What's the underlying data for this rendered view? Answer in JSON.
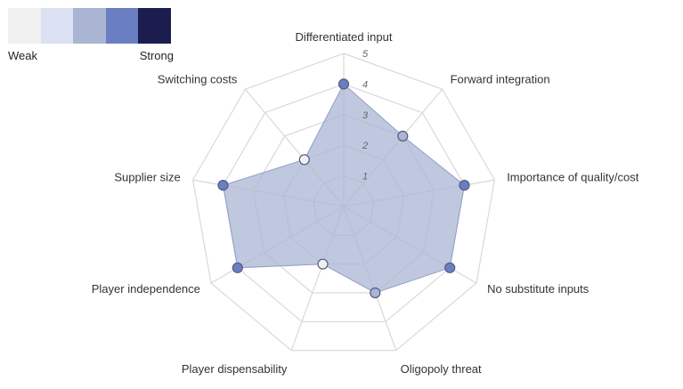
{
  "legend": {
    "colors": [
      "#f0f0f0",
      "#dbe1f2",
      "#a9b5d3",
      "#6a7fc1",
      "#1c1d4f"
    ],
    "weak_label": "Weak",
    "strong_label": "Strong"
  },
  "chart_data": {
    "type": "radar",
    "axes": [
      "Differentiated input",
      "Forward integration",
      "Importance of quality/cost",
      "No substitute inputs",
      "Oligopoly threat",
      "Player dispensability",
      "Player independence",
      "Supplier size",
      "Switching costs"
    ],
    "values": [
      4,
      3,
      4,
      4,
      3,
      2,
      4,
      4,
      2
    ],
    "rlim": [
      0,
      5
    ],
    "ticks": [
      "1",
      "2",
      "3",
      "4",
      "5"
    ],
    "fill_color": "#a9b5d3",
    "marker_colors": {
      "2": "#f0f0f0",
      "3": "#a9b5d3",
      "4": "#6a7fc1"
    },
    "grid_color": "#d9d9d9"
  }
}
